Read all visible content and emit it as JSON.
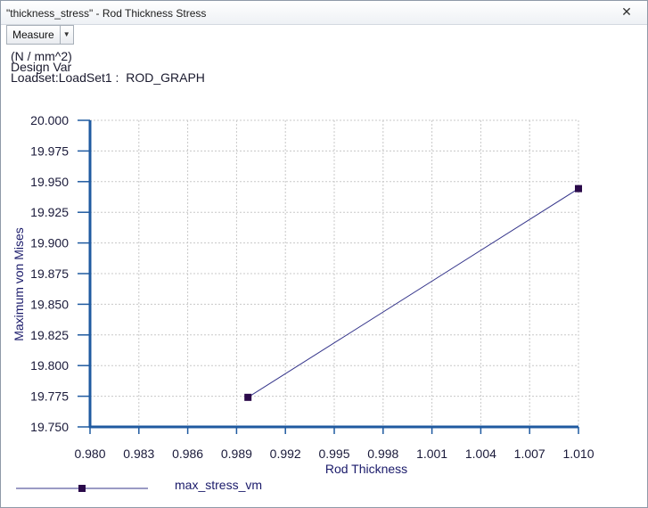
{
  "window": {
    "title": "\"thickness_stress\" - Rod Thickness Stress",
    "close_glyph": "✕"
  },
  "toolbar": {
    "measure_label": "Measure",
    "dropdown_glyph": "▼"
  },
  "info": {
    "units": "(N / mm^2)",
    "design_var": "Design Var",
    "loadset": "Loadset:LoadSet1 :  ROD_GRAPH"
  },
  "chart_data": {
    "type": "line",
    "xlabel": "Rod Thickness",
    "ylabel": "Maximum von Mises",
    "xlim": [
      0.98,
      1.01
    ],
    "ylim": [
      19.75,
      20.0
    ],
    "x_ticks": [
      "0.980",
      "0.983",
      "0.986",
      "0.989",
      "0.992",
      "0.995",
      "0.998",
      "1.001",
      "1.004",
      "1.007",
      "1.010"
    ],
    "y_ticks": [
      "19.750",
      "19.775",
      "19.800",
      "19.825",
      "19.850",
      "19.875",
      "19.900",
      "19.925",
      "19.950",
      "19.975",
      "20.000"
    ],
    "grid": true,
    "legend_position": "bottom-left",
    "series": [
      {
        "name": "max_stress_vm",
        "color": "#2b0a4a",
        "x": [
          0.9897,
          1.01
        ],
        "y": [
          19.7741,
          19.9443
        ]
      }
    ]
  },
  "colors": {
    "axis": "#1f5aa0",
    "grid": "#c8c8c8",
    "line": "#34348a",
    "marker": "#2b0a4a"
  }
}
